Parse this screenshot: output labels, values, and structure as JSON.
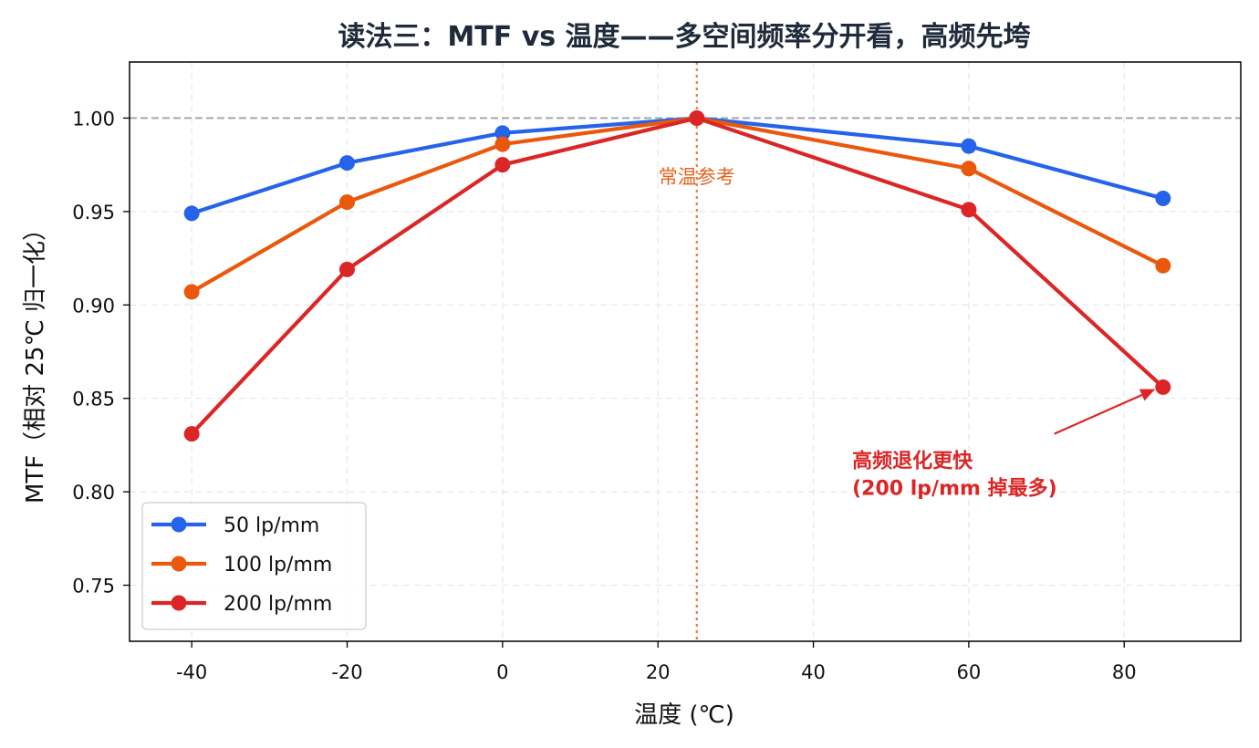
{
  "chart_data": {
    "type": "line",
    "title": "读法三：MTF vs 温度——多空间频率分开看，高频先垮",
    "xlabel": "温度 (℃)",
    "ylabel": "MTF（相对 25℃ 归一化）",
    "xlim": [
      -48,
      95
    ],
    "ylim": [
      0.72,
      1.03
    ],
    "xticks": [
      -40,
      -20,
      0,
      20,
      40,
      60,
      80
    ],
    "yticks": [
      0.75,
      0.8,
      0.85,
      0.9,
      0.95,
      1.0
    ],
    "xtick_labels": [
      "-40",
      "-20",
      "0",
      "20",
      "40",
      "60",
      "80"
    ],
    "ytick_labels": [
      "0.75",
      "0.80",
      "0.85",
      "0.90",
      "0.95",
      "1.00"
    ],
    "grid": true,
    "legend_position": "lower-left",
    "x": [
      -40,
      -20,
      0,
      25,
      60,
      85
    ],
    "series": [
      {
        "name": "50 lp/mm",
        "color": "#2563eb",
        "values": [
          0.949,
          0.976,
          0.992,
          1.0,
          0.985,
          0.957
        ]
      },
      {
        "name": "100 lp/mm",
        "color": "#ea580c",
        "values": [
          0.907,
          0.955,
          0.986,
          1.0,
          0.973,
          0.921
        ]
      },
      {
        "name": "200 lp/mm",
        "color": "#dc2626",
        "values": [
          0.831,
          0.919,
          0.975,
          1.0,
          0.951,
          0.856
        ]
      }
    ],
    "reference_vline": {
      "x": 25,
      "label": "常温参考",
      "color": "#f07a3a"
    },
    "reference_hline": {
      "y": 1.0,
      "color": "#9ca3af"
    },
    "annotation": {
      "lines": [
        "高频退化更快",
        "(200 lp/mm 掉最多)"
      ],
      "text_x": 45,
      "text_y": 0.813,
      "arrow_from": [
        71,
        0.831
      ],
      "arrow_to": [
        84,
        0.855
      ],
      "color": "#dc2626"
    }
  }
}
